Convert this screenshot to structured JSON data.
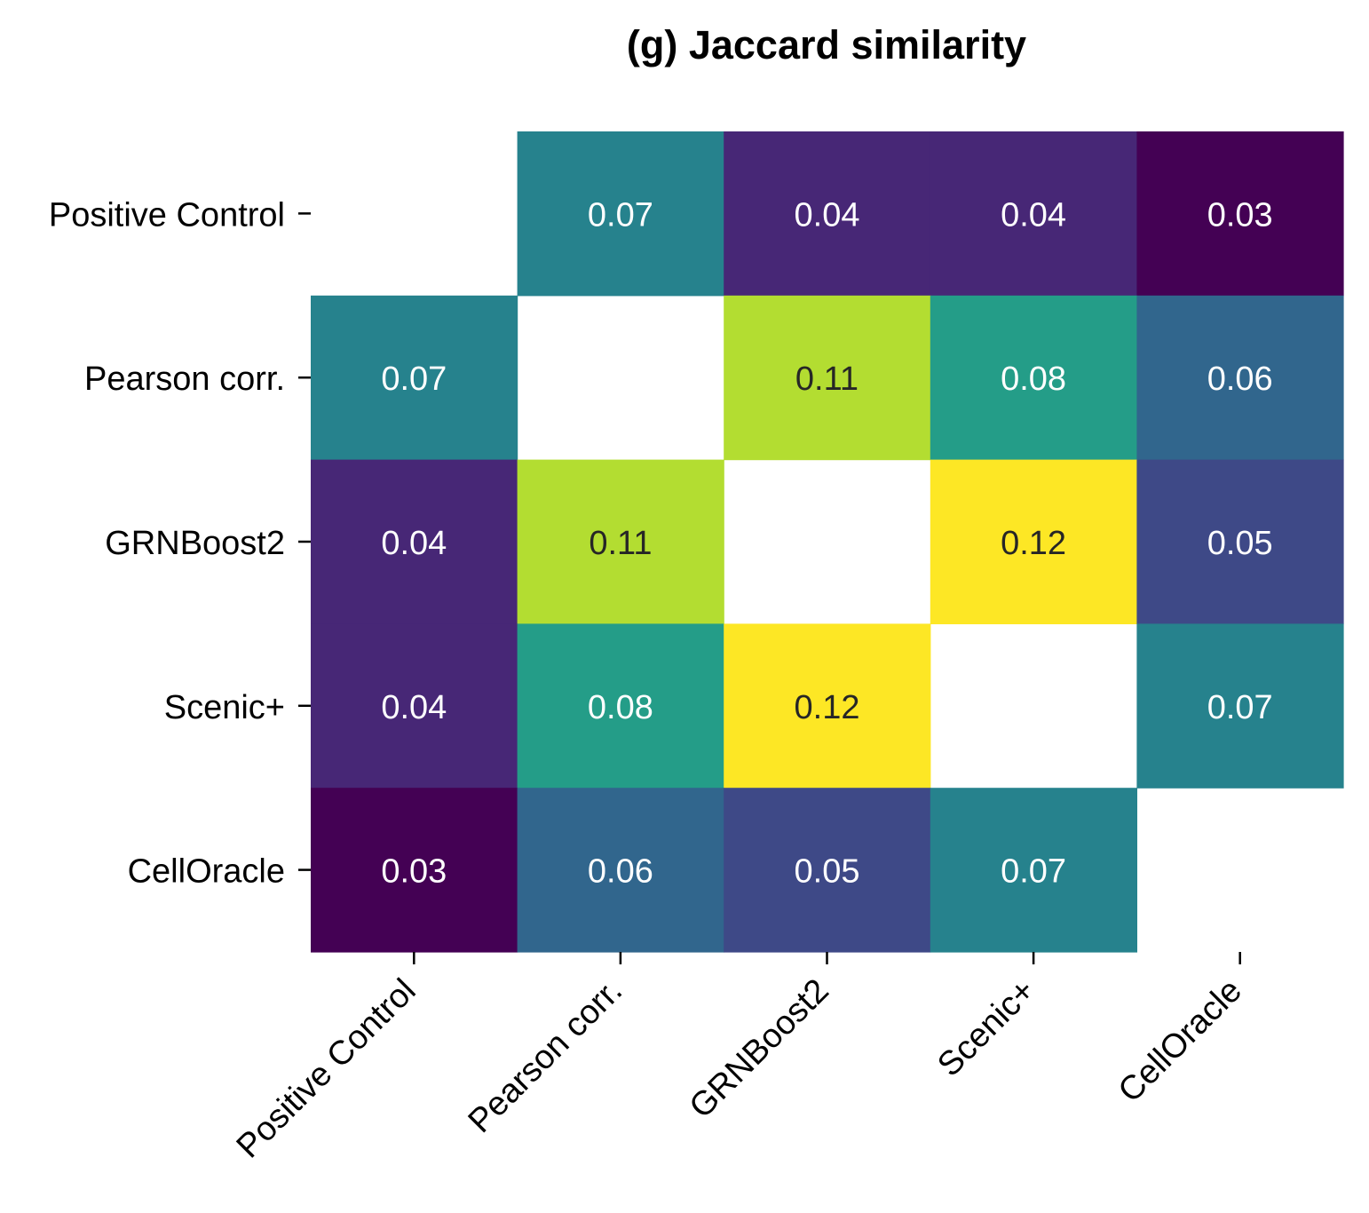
{
  "chart_data": {
    "type": "heatmap",
    "title": "(g) Jaccard similarity",
    "rows": [
      "Positive Control",
      "Pearson corr.",
      "GRNBoost2",
      "Scenic+",
      "CellOracle"
    ],
    "columns": [
      "Positive Control",
      "Pearson corr.",
      "GRNBoost2",
      "Scenic+",
      "CellOracle"
    ],
    "values": [
      [
        null,
        0.07,
        0.04,
        0.04,
        0.03
      ],
      [
        0.07,
        null,
        0.11,
        0.08,
        0.06
      ],
      [
        0.04,
        0.11,
        null,
        0.12,
        0.05
      ],
      [
        0.04,
        0.08,
        0.12,
        null,
        0.07
      ],
      [
        0.03,
        0.06,
        0.05,
        0.07,
        null
      ]
    ],
    "display_values": [
      [
        null,
        "0.07",
        "0.04",
        "0.04",
        "0.03"
      ],
      [
        "0.07",
        null,
        "0.11",
        "0.08",
        "0.06"
      ],
      [
        "0.04",
        "0.11",
        null,
        "0.12",
        "0.05"
      ],
      [
        "0.04",
        "0.08",
        "0.12",
        null,
        "0.07"
      ],
      [
        "0.03",
        "0.06",
        "0.05",
        "0.07",
        null
      ]
    ],
    "colormap": "viridis",
    "vmin": 0.03,
    "vmax": 0.12,
    "diagonal_masked": true,
    "colorbar": false,
    "grid": false
  }
}
